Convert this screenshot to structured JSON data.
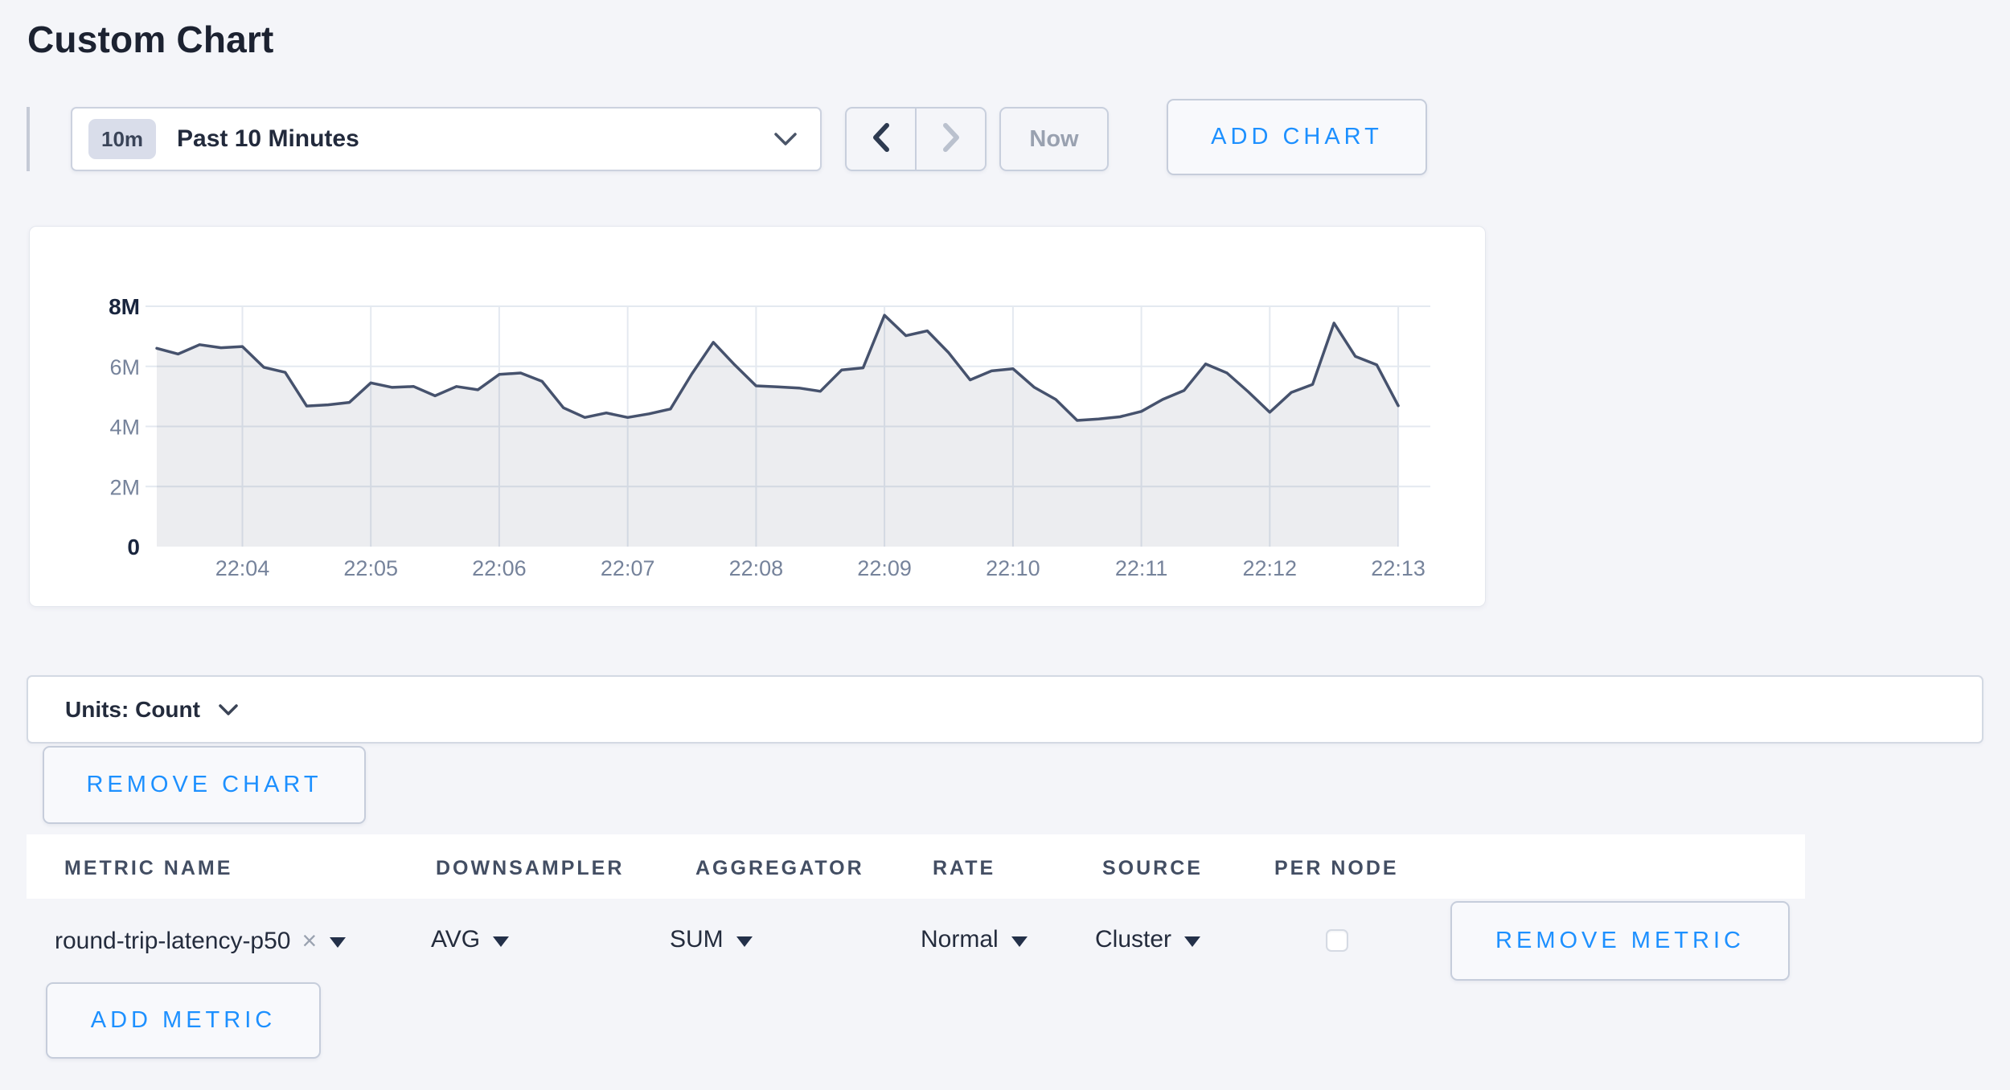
{
  "page": {
    "title": "Custom Chart"
  },
  "toolbar": {
    "time_range": {
      "badge": "10m",
      "label": "Past 10 Minutes"
    },
    "now_button": "Now",
    "add_chart_button": "ADD CHART"
  },
  "chart_data": {
    "type": "area",
    "title": "",
    "x_tick_labels": [
      "22:04",
      "22:05",
      "22:06",
      "22:07",
      "22:08",
      "22:09",
      "22:10",
      "22:11",
      "22:12",
      "22:13"
    ],
    "x_tick_seconds": [
      40,
      100,
      160,
      220,
      280,
      340,
      400,
      460,
      520,
      580
    ],
    "x_domain_seconds": [
      0,
      595
    ],
    "y_tick_labels": [
      "0",
      "2M",
      "4M",
      "6M",
      "8M"
    ],
    "y_tick_values_millions": [
      0,
      2,
      4,
      6,
      8
    ],
    "y_tick_major": [
      true,
      false,
      false,
      false,
      true
    ],
    "ylim_millions": [
      0,
      8
    ],
    "grid": true,
    "legend": false,
    "series": [
      {
        "name": "round-trip-latency-p50",
        "unit": "Count",
        "start_time": "22:03:20",
        "interval_seconds": 10,
        "values_millions": [
          6.6,
          6.41,
          6.72,
          6.62,
          6.66,
          5.97,
          5.8,
          4.68,
          4.72,
          4.8,
          5.45,
          5.3,
          5.33,
          5.02,
          5.33,
          5.22,
          5.73,
          5.78,
          5.5,
          4.62,
          4.3,
          4.45,
          4.3,
          4.42,
          4.58,
          5.75,
          6.8,
          6.05,
          5.35,
          5.32,
          5.28,
          5.17,
          5.88,
          5.95,
          7.7,
          7.02,
          7.18,
          6.45,
          5.55,
          5.85,
          5.92,
          5.3,
          4.9,
          4.2,
          4.25,
          4.32,
          4.5,
          4.9,
          5.2,
          6.08,
          5.78,
          5.15,
          4.47,
          5.13,
          5.4,
          7.44,
          6.33,
          6.05,
          4.69
        ]
      }
    ],
    "line_color": "#46526d",
    "fill_color": "rgba(70,82,109,0.10)",
    "grid_color": "#e4e9f0"
  },
  "units_bar": {
    "label": "Units: Count"
  },
  "buttons": {
    "remove_chart": "REMOVE CHART",
    "add_metric": "ADD METRIC"
  },
  "metrics_table": {
    "headers": [
      "METRIC NAME",
      "DOWNSAMPLER",
      "AGGREGATOR",
      "RATE",
      "SOURCE",
      "PER NODE"
    ],
    "rows": [
      {
        "metric_name": "round-trip-latency-p50",
        "remove_icon": "×",
        "downsampler": "AVG",
        "aggregator": "SUM",
        "rate": "Normal",
        "source": "Cluster",
        "per_node_checked": false,
        "remove_button": "REMOVE METRIC"
      }
    ]
  },
  "colors": {
    "accent_blue": "#1d90ff",
    "page_background": "#f4f5f9",
    "card_background": "#ffffff"
  }
}
